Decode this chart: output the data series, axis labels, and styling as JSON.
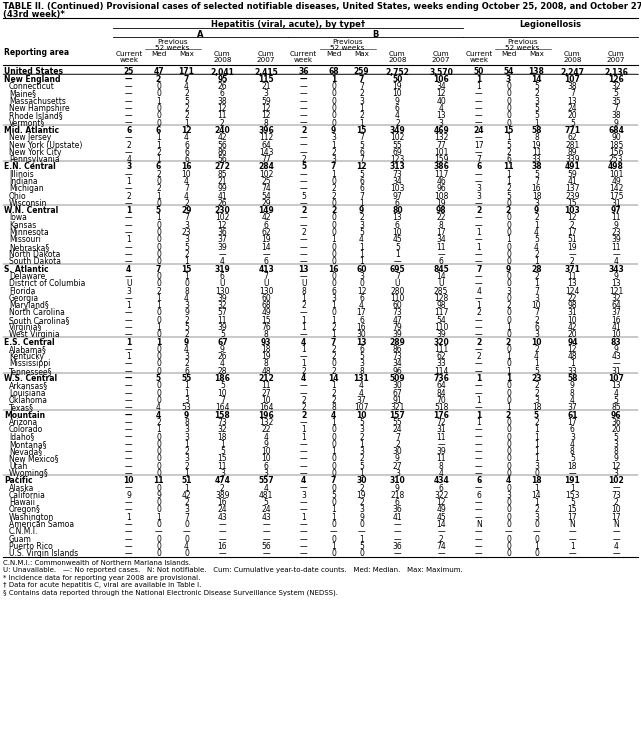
{
  "title_line1": "TABLE II. (Continued) Provisional cases of selected notifiable diseases, United States, weeks ending October 25, 2008, and October 27, 2007",
  "title_line2": "(43rd week)*",
  "col_group1": "Hepatitis (viral, acute), by type†",
  "col_subgroup1": "A",
  "col_subgroup2": "B",
  "col_subgroup3": "Legionellosis",
  "rows": [
    [
      "United States",
      "25",
      "47",
      "171",
      "2,041",
      "2,415",
      "36",
      "68",
      "259",
      "2,752",
      "3,570",
      "50",
      "54",
      "138",
      "2,247",
      "2,136"
    ],
    [
      "New England",
      "—",
      "2",
      "7",
      "95",
      "115",
      "—",
      "1",
      "7",
      "50",
      "106",
      "1",
      "3",
      "14",
      "107",
      "126"
    ],
    [
      "Connecticut",
      "—",
      "0",
      "4",
      "26",
      "21",
      "—",
      "0",
      "7",
      "19",
      "34",
      "1",
      "0",
      "5",
      "38",
      "32"
    ],
    [
      "Maine§",
      "—",
      "0",
      "2",
      "6",
      "3",
      "—",
      "0",
      "2",
      "10",
      "12",
      "—",
      "0",
      "2",
      "7",
      "5"
    ],
    [
      "Massachusetts",
      "—",
      "1",
      "5",
      "38",
      "59",
      "—",
      "0",
      "3",
      "9",
      "40",
      "—",
      "0",
      "3",
      "13",
      "35"
    ],
    [
      "New Hampshire",
      "—",
      "0",
      "2",
      "12",
      "12",
      "—",
      "0",
      "1",
      "6",
      "4",
      "—",
      "0",
      "5",
      "24",
      "7"
    ],
    [
      "Rhode Island§",
      "—",
      "0",
      "2",
      "11",
      "12",
      "—",
      "0",
      "2",
      "4",
      "13",
      "—",
      "0",
      "5",
      "20",
      "38"
    ],
    [
      "Vermont§",
      "—",
      "0",
      "1",
      "2",
      "8",
      "—",
      "0",
      "1",
      "2",
      "3",
      "—",
      "0",
      "1",
      "5",
      "9"
    ],
    [
      "Mid. Atlantic",
      "6",
      "6",
      "12",
      "240",
      "396",
      "2",
      "9",
      "15",
      "349",
      "469",
      "24",
      "15",
      "58",
      "771",
      "684"
    ],
    [
      "New Jersey",
      "—",
      "1",
      "4",
      "42",
      "112",
      "—",
      "3",
      "7",
      "102",
      "132",
      "—",
      "1",
      "8",
      "62",
      "90"
    ],
    [
      "New York (Upstate)",
      "2",
      "1",
      "6",
      "56",
      "64",
      "—",
      "1",
      "5",
      "55",
      "77",
      "17",
      "5",
      "19",
      "281",
      "185"
    ],
    [
      "New York City",
      "—",
      "2",
      "6",
      "86",
      "143",
      "—",
      "2",
      "6",
      "69",
      "101",
      "—",
      "2",
      "11",
      "89",
      "156"
    ],
    [
      "Pennsylvania",
      "4",
      "1",
      "6",
      "56",
      "77",
      "2",
      "3",
      "7",
      "123",
      "159",
      "7",
      "6",
      "33",
      "339",
      "253"
    ],
    [
      "E.N. Central",
      "3",
      "6",
      "16",
      "272",
      "284",
      "5",
      "7",
      "12",
      "313",
      "386",
      "6",
      "11",
      "38",
      "491",
      "498"
    ],
    [
      "Illinois",
      "—",
      "2",
      "10",
      "85",
      "102",
      "—",
      "1",
      "5",
      "73",
      "117",
      "—",
      "1",
      "5",
      "59",
      "101"
    ],
    [
      "Indiana",
      "1",
      "0",
      "4",
      "21",
      "25",
      "—",
      "0",
      "6",
      "34",
      "46",
      "—",
      "1",
      "7",
      "41",
      "49"
    ],
    [
      "Michigan",
      "—",
      "2",
      "7",
      "99",
      "74",
      "—",
      "2",
      "6",
      "103",
      "96",
      "3",
      "2",
      "16",
      "137",
      "142"
    ],
    [
      "Ohio",
      "2",
      "1",
      "4",
      "41",
      "54",
      "5",
      "2",
      "7",
      "97",
      "108",
      "3",
      "5",
      "18",
      "239",
      "175"
    ],
    [
      "Wisconsin",
      "—",
      "0",
      "2",
      "26",
      "29",
      "—",
      "0",
      "1",
      "6",
      "19",
      "—",
      "0",
      "3",
      "15",
      "31"
    ],
    [
      "W.N. Central",
      "1",
      "5",
      "29",
      "230",
      "149",
      "2",
      "2",
      "9",
      "80",
      "98",
      "2",
      "2",
      "9",
      "103",
      "97"
    ],
    [
      "Iowa",
      "—",
      "1",
      "7",
      "102",
      "42",
      "—",
      "0",
      "2",
      "13",
      "22",
      "—",
      "0",
      "2",
      "12",
      "11"
    ],
    [
      "Kansas",
      "—",
      "0",
      "3",
      "12",
      "6",
      "—",
      "0",
      "3",
      "6",
      "8",
      "—",
      "0",
      "1",
      "2",
      "9"
    ],
    [
      "Minnesota",
      "—",
      "0",
      "23",
      "36",
      "62",
      "2",
      "0",
      "5",
      "10",
      "17",
      "1",
      "0",
      "4",
      "17",
      "23"
    ],
    [
      "Missouri",
      "1",
      "0",
      "3",
      "37",
      "19",
      "—",
      "1",
      "4",
      "45",
      "34",
      "—",
      "1",
      "5",
      "51",
      "39"
    ],
    [
      "Nebraska§",
      "—",
      "0",
      "5",
      "39",
      "14",
      "—",
      "0",
      "1",
      "5",
      "11",
      "1",
      "0",
      "4",
      "19",
      "11"
    ],
    [
      "North Dakota",
      "—",
      "0",
      "2",
      "—",
      "—",
      "—",
      "0",
      "1",
      "1",
      "—",
      "—",
      "0",
      "2",
      "—",
      "—"
    ],
    [
      "South Dakota",
      "—",
      "0",
      "1",
      "4",
      "6",
      "—",
      "0",
      "1",
      "—",
      "6",
      "—",
      "0",
      "1",
      "2",
      "4"
    ],
    [
      "S. Atlantic",
      "4",
      "7",
      "15",
      "319",
      "413",
      "13",
      "16",
      "60",
      "695",
      "845",
      "7",
      "9",
      "28",
      "371",
      "343"
    ],
    [
      "Delaware",
      "—",
      "0",
      "1",
      "6",
      "7",
      "—",
      "0",
      "3",
      "7",
      "14",
      "—",
      "0",
      "2",
      "11",
      "9"
    ],
    [
      "District of Columbia",
      "U",
      "0",
      "0",
      "U",
      "U",
      "U",
      "0",
      "0",
      "U",
      "U",
      "—",
      "0",
      "1",
      "13",
      "13"
    ],
    [
      "Florida",
      "3",
      "2",
      "8",
      "130",
      "130",
      "8",
      "6",
      "12",
      "280",
      "285",
      "4",
      "3",
      "7",
      "124",
      "121"
    ],
    [
      "Georgia",
      "—",
      "1",
      "4",
      "39",
      "60",
      "1",
      "3",
      "6",
      "110",
      "128",
      "—",
      "0",
      "3",
      "22",
      "32"
    ],
    [
      "Maryland§",
      "1",
      "1",
      "3",
      "32",
      "68",
      "2",
      "1",
      "4",
      "60",
      "98",
      "1",
      "2",
      "10",
      "98",
      "64"
    ],
    [
      "North Carolina",
      "—",
      "0",
      "9",
      "57",
      "49",
      "—",
      "0",
      "17",
      "73",
      "117",
      "2",
      "0",
      "7",
      "31",
      "37"
    ],
    [
      "South Carolina§",
      "—",
      "0",
      "2",
      "11",
      "15",
      "1",
      "1",
      "6",
      "47",
      "54",
      "—",
      "0",
      "2",
      "10",
      "16"
    ],
    [
      "Virginia§",
      "—",
      "1",
      "5",
      "39",
      "76",
      "1",
      "2",
      "16",
      "79",
      "110",
      "—",
      "1",
      "6",
      "42",
      "41"
    ],
    [
      "West Virginia",
      "—",
      "0",
      "2",
      "5",
      "8",
      "—",
      "1",
      "30",
      "39",
      "39",
      "—",
      "0",
      "3",
      "20",
      "10"
    ],
    [
      "E.S. Central",
      "1",
      "1",
      "9",
      "67",
      "93",
      "4",
      "7",
      "13",
      "289",
      "320",
      "2",
      "2",
      "10",
      "94",
      "83"
    ],
    [
      "Alabama§",
      "—",
      "0",
      "4",
      "9",
      "18",
      "1",
      "2",
      "6",
      "86",
      "111",
      "—",
      "0",
      "2",
      "12",
      "9"
    ],
    [
      "Kentucky",
      "1",
      "0",
      "3",
      "26",
      "19",
      "—",
      "2",
      "5",
      "73",
      "62",
      "2",
      "1",
      "4",
      "48",
      "43"
    ],
    [
      "Mississippi",
      "—",
      "0",
      "2",
      "4",
      "8",
      "1",
      "0",
      "3",
      "34",
      "33",
      "—",
      "0",
      "1",
      "1",
      "—"
    ],
    [
      "Tennessee§",
      "—",
      "0",
      "6",
      "28",
      "48",
      "2",
      "2",
      "8",
      "96",
      "114",
      "—",
      "1",
      "5",
      "33",
      "31"
    ],
    [
      "W.S. Central",
      "—",
      "5",
      "55",
      "186",
      "212",
      "4",
      "14",
      "131",
      "509",
      "736",
      "1",
      "1",
      "23",
      "58",
      "107"
    ],
    [
      "Arkansas§",
      "—",
      "0",
      "1",
      "5",
      "11",
      "—",
      "1",
      "4",
      "30",
      "64",
      "—",
      "0",
      "2",
      "9",
      "13"
    ],
    [
      "Louisiana",
      "—",
      "0",
      "1",
      "10",
      "27",
      "—",
      "2",
      "4",
      "67",
      "84",
      "—",
      "0",
      "2",
      "8",
      "4"
    ],
    [
      "Oklahoma",
      "—",
      "0",
      "3",
      "7",
      "10",
      "2",
      "2",
      "37",
      "91",
      "70",
      "1",
      "0",
      "3",
      "4",
      "5"
    ],
    [
      "Texas§",
      "—",
      "4",
      "53",
      "164",
      "164",
      "2",
      "8",
      "107",
      "321",
      "518",
      "—",
      "1",
      "18",
      "37",
      "85"
    ],
    [
      "Mountain",
      "—",
      "4",
      "9",
      "158",
      "196",
      "2",
      "4",
      "10",
      "157",
      "176",
      "1",
      "2",
      "5",
      "61",
      "96"
    ],
    [
      "Arizona",
      "—",
      "2",
      "8",
      "73",
      "132",
      "—",
      "1",
      "5",
      "55",
      "72",
      "1",
      "0",
      "2",
      "17",
      "36"
    ],
    [
      "Colorado",
      "—",
      "1",
      "3",
      "32",
      "22",
      "1",
      "0",
      "3",
      "24",
      "31",
      "—",
      "0",
      "1",
      "6",
      "20"
    ],
    [
      "Idaho§",
      "—",
      "0",
      "3",
      "18",
      "4",
      "1",
      "0",
      "2",
      "7",
      "11",
      "—",
      "0",
      "1",
      "3",
      "5"
    ],
    [
      "Montana§",
      "—",
      "0",
      "1",
      "1",
      "9",
      "—",
      "0",
      "1",
      "2",
      "—",
      "—",
      "0",
      "1",
      "4",
      "3"
    ],
    [
      "Nevada§",
      "—",
      "0",
      "2",
      "5",
      "10",
      "—",
      "1",
      "3",
      "30",
      "39",
      "—",
      "0",
      "1",
      "8",
      "8"
    ],
    [
      "New Mexico§",
      "—",
      "0",
      "3",
      "15",
      "10",
      "—",
      "0",
      "2",
      "9",
      "11",
      "—",
      "0",
      "1",
      "5",
      "9"
    ],
    [
      "Utah",
      "—",
      "0",
      "2",
      "11",
      "6",
      "—",
      "0",
      "5",
      "27",
      "8",
      "—",
      "0",
      "3",
      "18",
      "12"
    ],
    [
      "Wyoming§",
      "—",
      "0",
      "1",
      "3",
      "3",
      "—",
      "0",
      "1",
      "3",
      "4",
      "—",
      "0",
      "0",
      "—",
      "3"
    ],
    [
      "Pacific",
      "10",
      "11",
      "51",
      "474",
      "557",
      "4",
      "7",
      "30",
      "310",
      "434",
      "6",
      "4",
      "18",
      "191",
      "102"
    ],
    [
      "Alaska",
      "—",
      "0",
      "1",
      "2",
      "4",
      "—",
      "0",
      "2",
      "9",
      "6",
      "—",
      "0",
      "1",
      "1",
      "—"
    ],
    [
      "California",
      "9",
      "9",
      "42",
      "389",
      "481",
      "3",
      "5",
      "19",
      "218",
      "322",
      "6",
      "3",
      "14",
      "153",
      "73"
    ],
    [
      "Hawaii",
      "—",
      "0",
      "2",
      "16",
      "5",
      "—",
      "0",
      "2",
      "6",
      "12",
      "—",
      "0",
      "1",
      "5",
      "2"
    ],
    [
      "Oregon§",
      "—",
      "0",
      "3",
      "24",
      "24",
      "—",
      "1",
      "3",
      "36",
      "49",
      "—",
      "0",
      "2",
      "15",
      "10"
    ],
    [
      "Washington",
      "1",
      "1",
      "7",
      "43",
      "43",
      "1",
      "1",
      "9",
      "41",
      "45",
      "—",
      "0",
      "3",
      "17",
      "17"
    ],
    [
      "American Samoa",
      "—",
      "0",
      "0",
      "—",
      "—",
      "—",
      "0",
      "0",
      "—",
      "14",
      "N",
      "0",
      "0",
      "N",
      "N"
    ],
    [
      "C.N.M.I.",
      "—",
      "—",
      "—",
      "—",
      "—",
      "—",
      "—",
      "—",
      "—",
      "—",
      "—",
      "—",
      "—",
      "—",
      "—"
    ],
    [
      "Guam",
      "—",
      "0",
      "0",
      "—",
      "—",
      "—",
      "0",
      "1",
      "—",
      "2",
      "—",
      "0",
      "0",
      "—",
      "—"
    ],
    [
      "Puerto Rico",
      "—",
      "0",
      "4",
      "16",
      "56",
      "—",
      "1",
      "5",
      "36",
      "74",
      "—",
      "0",
      "1",
      "1",
      "4"
    ],
    [
      "U.S. Virgin Islands",
      "—",
      "0",
      "0",
      "—",
      "—",
      "—",
      "0",
      "0",
      "—",
      "—",
      "—",
      "0",
      "0",
      "—",
      "—"
    ]
  ],
  "bold_rows": [
    0,
    1,
    8,
    13,
    19,
    27,
    37,
    42,
    47,
    56
  ],
  "section_divider_rows": [
    1,
    8,
    13,
    19,
    27,
    37,
    42,
    47,
    56
  ],
  "footer_lines": [
    "C.N.M.I.: Commonwealth of Northern Mariana Islands.",
    "U: Unavailable.   —: No reported cases.   N: Not notifiable.   Cum: Cumulative year-to-date counts.   Med: Median.   Max: Maximum.",
    "* Incidence data for reporting year 2008 are provisional.",
    "† Data for acute hepatitis C, viral are available in Table I.",
    "§ Contains data reported through the National Electronic Disease Surveillance System (NEDSS)."
  ]
}
